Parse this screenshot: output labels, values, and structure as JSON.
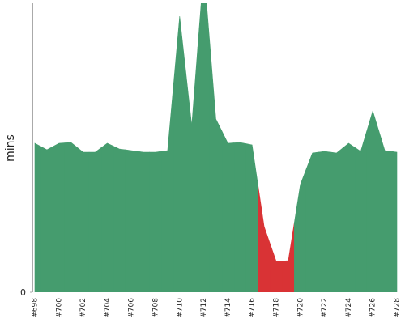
{
  "chart_data": {
    "type": "area",
    "y_label": "mins",
    "categories": [
      "#698",
      null,
      "#700",
      null,
      "#702",
      null,
      "#704",
      null,
      "#706",
      null,
      "#708",
      null,
      "#710",
      null,
      "#712",
      null,
      "#714",
      null,
      "#716",
      null,
      "#718",
      null,
      "#720",
      null,
      "#722",
      null,
      "#724",
      null,
      "#726",
      null,
      "#728"
    ],
    "values": [
      18.4,
      17.6,
      18.4,
      18.5,
      17.3,
      17.3,
      18.4,
      17.7,
      17.5,
      17.3,
      17.3,
      17.5,
      34.1,
      20.6,
      40,
      21.4,
      18.4,
      18.5,
      18.2,
      8.1,
      3.8,
      3.9,
      13.3,
      17.2,
      17.4,
      17.2,
      18.4,
      17.4,
      22.4,
      17.5,
      17.3
    ],
    "colors": [
      "#459c6e",
      "#459c6e",
      "#459c6e",
      "#459c6e",
      "#459c6e",
      "#459c6e",
      "#459c6e",
      "#459c6e",
      "#459c6e",
      "#459c6e",
      "#459c6e",
      "#459c6e",
      "#459c6e",
      "#459c6e",
      "#459c6e",
      "#459c6e",
      "#459c6e",
      "#459c6e",
      "#459c6e",
      "#d93335",
      "#d93335",
      "#d93335",
      "#459c6e",
      "#459c6e",
      "#459c6e",
      "#459c6e",
      "#459c6e",
      "#459c6e",
      "#459c6e",
      "#459c6e",
      "#459c6e"
    ],
    "ylim": [
      0,
      35.7
    ],
    "yticks": [
      0
    ]
  }
}
